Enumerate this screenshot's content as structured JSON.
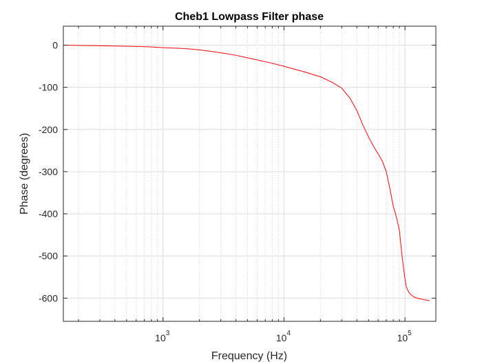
{
  "chart_data": {
    "type": "line",
    "title": "Cheb1 Lowpass Filter phase",
    "xlabel": "Frequency (Hz)",
    "ylabel": "Phase (degrees)",
    "xscale": "log",
    "xlim": [
      150,
      180000
    ],
    "ylim": [
      -655,
      45
    ],
    "grid": true,
    "minor_grid_x": true,
    "x_ticks": [
      {
        "value": 1000,
        "base": "10",
        "exp": "3"
      },
      {
        "value": 10000,
        "base": "10",
        "exp": "4"
      },
      {
        "value": 100000,
        "base": "10",
        "exp": "5"
      }
    ],
    "y_ticks": [
      {
        "value": 0,
        "label": "0"
      },
      {
        "value": -100,
        "label": "-100"
      },
      {
        "value": -200,
        "label": "-200"
      },
      {
        "value": -300,
        "label": "-300"
      },
      {
        "value": -400,
        "label": "-400"
      },
      {
        "value": -500,
        "label": "-500"
      },
      {
        "value": -600,
        "label": "-600"
      }
    ],
    "series": [
      {
        "color": "#ff0000",
        "x": [
          160,
          250,
          400,
          600,
          800,
          1000,
          1500,
          2000,
          3000,
          4000,
          5000,
          6000,
          8000,
          10000,
          15000,
          20000,
          25000,
          30000,
          35000,
          40000,
          45000,
          50000,
          55000,
          60000,
          65000,
          70000,
          75000,
          80000,
          85000,
          90000,
          95000,
          100000,
          103000,
          107000,
          112000,
          120000,
          130000,
          145000,
          160000
        ],
        "y": [
          0,
          -1,
          -2,
          -3,
          -4,
          -6,
          -8,
          -11,
          -18,
          -24,
          -30,
          -35,
          -43,
          -50,
          -64,
          -75,
          -88,
          -102,
          -125,
          -155,
          -190,
          -218,
          -240,
          -258,
          -275,
          -300,
          -340,
          -382,
          -408,
          -440,
          -505,
          -555,
          -575,
          -585,
          -592,
          -598,
          -601,
          -604,
          -606
        ]
      }
    ]
  }
}
